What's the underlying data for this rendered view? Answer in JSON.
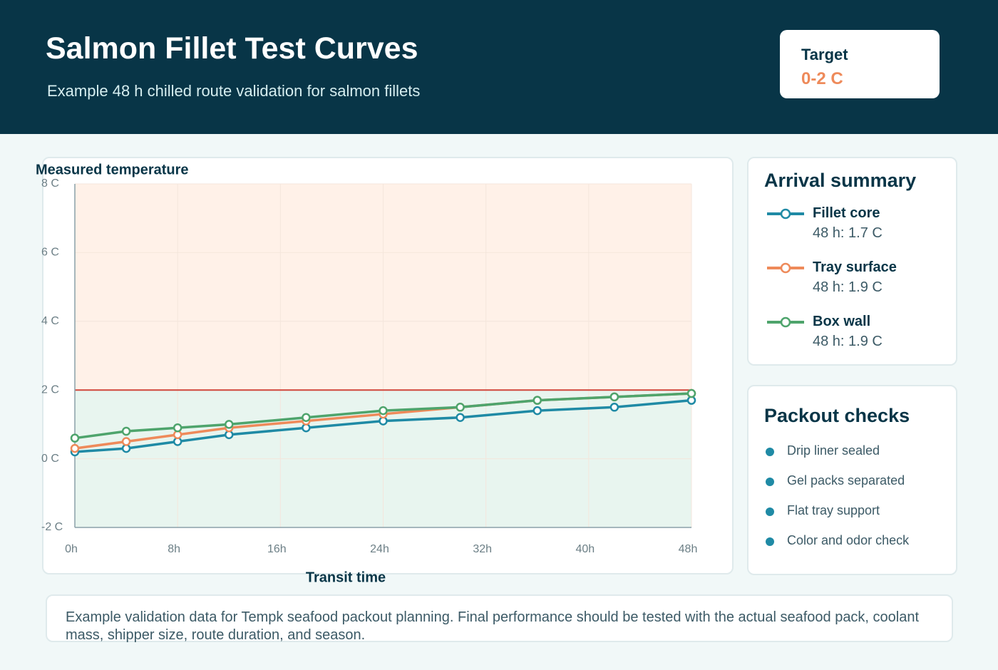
{
  "header": {
    "title": "Salmon Fillet Test Curves",
    "subtitle": "Example 48 h chilled route validation for salmon fillets",
    "target_label": "Target",
    "target_value": "0-2 C"
  },
  "chart_data": {
    "type": "line",
    "y_label": "Measured temperature",
    "x_label": "Transit time",
    "x": [
      0,
      4,
      8,
      12,
      18,
      24,
      30,
      36,
      42,
      48
    ],
    "series": [
      {
        "name": "Fillet core",
        "color": "#1f8aa5",
        "summary": "48 h: 1.7 C",
        "values": [
          0.2,
          0.3,
          0.5,
          0.7,
          0.9,
          1.1,
          1.2,
          1.4,
          1.5,
          1.7
        ]
      },
      {
        "name": "Tray surface",
        "color": "#ee8a5a",
        "summary": "48 h: 1.9 C",
        "values": [
          0.3,
          0.5,
          0.7,
          0.9,
          1.1,
          1.3,
          1.5,
          1.7,
          1.8,
          1.9
        ]
      },
      {
        "name": "Box wall",
        "color": "#4ea46c",
        "summary": "48 h: 1.9 C",
        "values": [
          0.6,
          0.8,
          0.9,
          1.0,
          1.2,
          1.4,
          1.5,
          1.7,
          1.8,
          1.9
        ]
      }
    ],
    "xlim": [
      0,
      48
    ],
    "xticks": [
      {
        "value": 0,
        "label": "0h"
      },
      {
        "value": 8,
        "label": "8h"
      },
      {
        "value": 16,
        "label": "16h"
      },
      {
        "value": 24,
        "label": "24h"
      },
      {
        "value": 32,
        "label": "32h"
      },
      {
        "value": 40,
        "label": "40h"
      },
      {
        "value": 48,
        "label": "48h"
      }
    ],
    "ylim": [
      -2,
      8
    ],
    "yticks": [
      {
        "value": -2,
        "label": "-2 C"
      },
      {
        "value": 0,
        "label": "0 C"
      },
      {
        "value": 2,
        "label": "2 C"
      },
      {
        "value": 4,
        "label": "4 C"
      },
      {
        "value": 6,
        "label": "6 C"
      },
      {
        "value": 8,
        "label": "8 C"
      }
    ],
    "threshold": 2,
    "grid": true
  },
  "summary": {
    "title": "Arrival summary"
  },
  "checks": {
    "title": "Packout checks",
    "items": [
      "Drip liner sealed",
      "Gel packs separated",
      "Flat tray support",
      "Color and odor check"
    ]
  },
  "note": "Example validation data for Tempk seafood packout planning. Final performance should be tested with the actual seafood pack, coolant mass, shipper size, route duration, and season."
}
